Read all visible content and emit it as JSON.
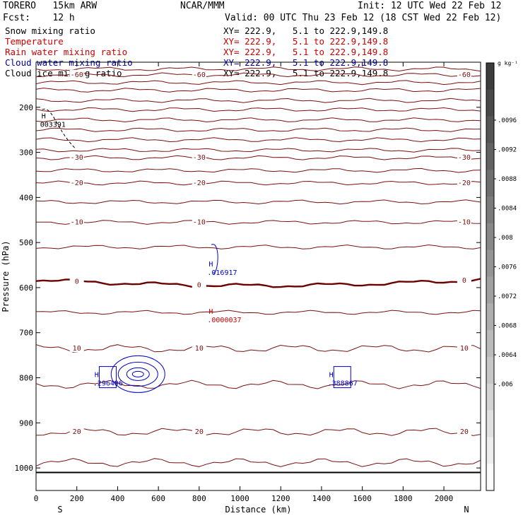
{
  "header": {
    "model": "TORERO   15km ARW",
    "center": "NCAR/MMM",
    "init": "Init: 12 UTC Wed 22 Feb 12",
    "fcst": "Fcst:    12 h",
    "valid": "Valid: 00 UTC Thu 23 Feb 12 (18 CST Wed 22 Feb 12)"
  },
  "fields": [
    {
      "label": "Snow mixing ratio",
      "xy": "XY= 222.9,   5.1 to 222.9,149.8",
      "color": "#000000"
    },
    {
      "label": "Temperature",
      "xy": "XY= 222.9,   5.1 to 222.9,149.8",
      "color": "#cc0000"
    },
    {
      "label": "Rain water mixing ratio",
      "xy": "XY= 222.9,   5.1 to 222.9,149.8",
      "color": "#cc0000"
    },
    {
      "label": "Cloud water mixing ratio",
      "xy": "XY= 222.9,   5.1 to 222.9,149.8",
      "color": "#0000aa"
    },
    {
      "label": "Cloud ice mixing ratio",
      "xy": "XY= 222.9,   5.1 to 222.9,149.8",
      "color": "#000000"
    }
  ],
  "colors": {
    "temperature": "#7a1010",
    "freezing": "#6a0000",
    "rain": "#cc0000",
    "cloud_water": "#0000cc",
    "snow": "#000000",
    "axis": "#000000"
  },
  "chart_data": {
    "type": "contour",
    "xlabel": "Distance (km)",
    "ylabel": "Pressure (hPa)",
    "xlim": [
      0,
      2180
    ],
    "ylim": [
      1050,
      100
    ],
    "x_ticks": [
      0,
      200,
      400,
      600,
      800,
      1000,
      1200,
      1400,
      1600,
      1800,
      2000
    ],
    "y_ticks": [
      200,
      300,
      400,
      500,
      600,
      700,
      800,
      900,
      1000
    ],
    "direction_left": "S",
    "direction_right": "N",
    "colorbar": {
      "unit": "g kg⁻¹",
      "ticks": [
        ".0096",
        ".0092",
        ".0088",
        ".0084",
        ".008",
        ".0076",
        ".0072",
        ".0068",
        ".0064",
        ".006"
      ]
    },
    "isotherms": [
      {
        "p": 115,
        "label": "",
        "thick": false
      },
      {
        "p": 128,
        "label": "-60",
        "thick": false
      },
      {
        "p": 145,
        "label": "",
        "thick": false
      },
      {
        "p": 162,
        "label": "",
        "thick": false
      },
      {
        "p": 185,
        "label": "",
        "thick": false
      },
      {
        "p": 205,
        "label": "",
        "thick": false
      },
      {
        "p": 228,
        "label": "",
        "thick": false
      },
      {
        "p": 250,
        "label": "",
        "thick": false
      },
      {
        "p": 272,
        "label": "",
        "thick": false
      },
      {
        "p": 295,
        "label": "",
        "thick": false
      },
      {
        "p": 312,
        "label": "-30",
        "thick": false
      },
      {
        "p": 340,
        "label": "",
        "thick": false
      },
      {
        "p": 368,
        "label": "-20",
        "thick": false
      },
      {
        "p": 410,
        "label": "",
        "thick": false
      },
      {
        "p": 455,
        "label": "-10",
        "thick": false
      },
      {
        "p": 510,
        "label": "",
        "thick": false
      },
      {
        "p": 583,
        "label": "0",
        "thick": true
      },
      {
        "p": 655,
        "label": "",
        "thick": false
      },
      {
        "p": 735,
        "label": "10",
        "thick": false
      },
      {
        "p": 815,
        "label": "",
        "thick": false
      },
      {
        "p": 920,
        "label": "20",
        "thick": false
      },
      {
        "p": 988,
        "label": "",
        "thick": false
      }
    ],
    "maxima": [
      {
        "x": 20,
        "p": 225,
        "h": "H",
        "value": "003391",
        "field": "snow"
      },
      {
        "x": 840,
        "p": 553,
        "h": "H",
        "value": ".016917",
        "field": "cloud_water"
      },
      {
        "x": 840,
        "p": 658,
        "h": "H",
        "value": ".0000037",
        "field": "rain"
      },
      {
        "x": 280,
        "p": 798,
        "h": "H",
        "value": ".296496",
        "field": "cloud_water"
      },
      {
        "x": 1430,
        "p": 798,
        "h": "H",
        "value": ".388867",
        "field": "cloud_water"
      }
    ]
  }
}
